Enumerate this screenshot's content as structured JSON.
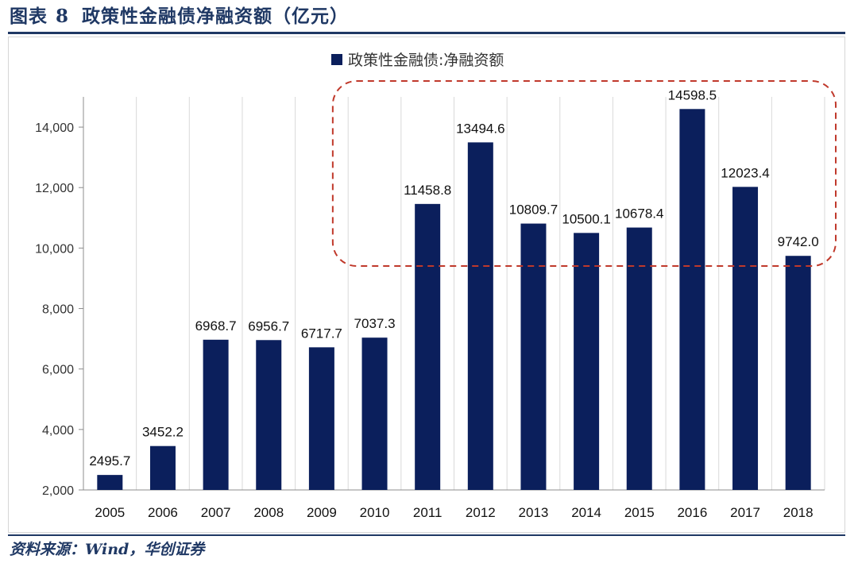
{
  "header": {
    "figure_label": "图表",
    "figure_number": "8",
    "title": "政策性金融债净融资额（亿元）"
  },
  "footer": {
    "source": "资料来源：Wind，华创证券"
  },
  "colors": {
    "bar": "#0b1f5c",
    "accent": "#1f3864",
    "highlight": "#c0392b"
  },
  "chart_data": {
    "type": "bar",
    "title": "政策性金融债净融资额（亿元）",
    "legend": {
      "label": "政策性金融债:净融资额",
      "position": "top-center"
    },
    "categories": [
      "2005",
      "2006",
      "2007",
      "2008",
      "2009",
      "2010",
      "2011",
      "2012",
      "2013",
      "2014",
      "2015",
      "2016",
      "2017",
      "2018"
    ],
    "values": [
      2495.7,
      3452.2,
      6968.7,
      6956.7,
      6717.7,
      7037.3,
      11458.8,
      13494.6,
      10809.7,
      10500.1,
      10678.4,
      14598.5,
      12023.4,
      9742.0
    ],
    "data_labels": [
      "2495.7",
      "3452.2",
      "6968.7",
      "6956.7",
      "6717.7",
      "7037.3",
      "11458.8",
      "13494.6",
      "10809.7",
      "10500.1",
      "10678.4",
      "14598.5",
      "12023.4",
      "9742.0"
    ],
    "y_ticks": [
      2000,
      4000,
      6000,
      8000,
      10000,
      12000,
      14000
    ],
    "y_tick_labels": [
      "2,000",
      "4,000",
      "6,000",
      "8,000",
      "10,000",
      "12,000",
      "14,000"
    ],
    "ylim": [
      2000,
      15000
    ],
    "xlabel": "",
    "ylabel": "",
    "grid": "vertical",
    "highlight": {
      "from": "2011",
      "to": "2018",
      "style": "dashed-rounded-box"
    }
  }
}
